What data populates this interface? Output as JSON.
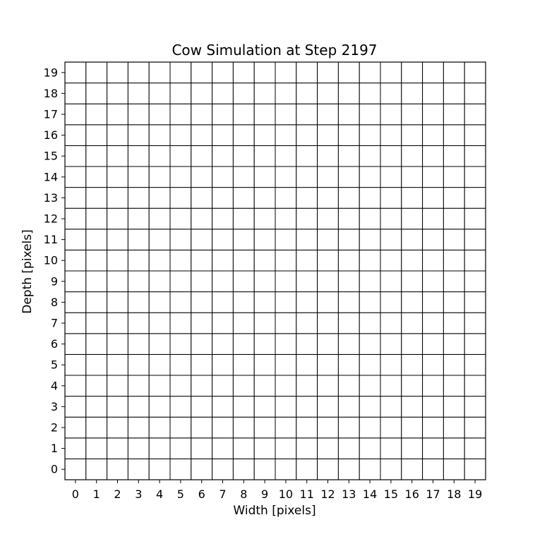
{
  "chart_data": {
    "type": "heatmap",
    "title": "Cow Simulation at Step 2197",
    "xlabel": "Width [pixels]",
    "ylabel": "Depth [pixels]",
    "x_ticks": [
      "0",
      "1",
      "2",
      "3",
      "4",
      "5",
      "6",
      "7",
      "8",
      "9",
      "10",
      "11",
      "12",
      "13",
      "14",
      "15",
      "16",
      "17",
      "18",
      "19"
    ],
    "y_ticks": [
      "0",
      "1",
      "2",
      "3",
      "4",
      "5",
      "6",
      "7",
      "8",
      "9",
      "10",
      "11",
      "12",
      "13",
      "14",
      "15",
      "16",
      "17",
      "18",
      "19"
    ],
    "xlim": [
      -0.5,
      19.5
    ],
    "ylim": [
      -0.5,
      19.5
    ],
    "grid": true,
    "grid_color": "#000000",
    "cell_color": "#ffffff",
    "values": "all cells blank (white)"
  }
}
